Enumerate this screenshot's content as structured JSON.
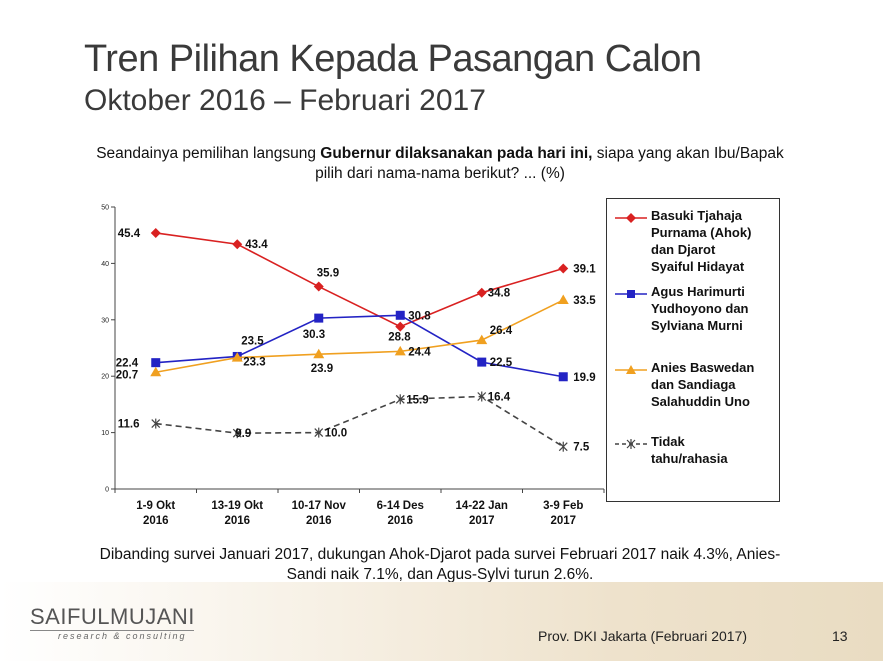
{
  "slide": {
    "title": "Tren Pilihan Kepada Pasangan Calon",
    "subtitle": "Oktober 2016 – Februari 2017",
    "question_line1_pre": "Seandainya pemilihan langsung ",
    "question_line1_bold": "Gubernur dilaksanakan pada hari ini,",
    "question_line1_post": " siapa yang akan Ibu/Bapak",
    "question_line2": "pilih dari nama-nama berikut? ... (%)",
    "conclusion_line1": "Dibanding survei Januari 2017, dukungan Ahok-Djarot pada survei Februari 2017 naik 4.3%, Anies-",
    "conclusion_line2": "Sandi naik 7.1%, dan Agus-Sylvi turun 2.6%.",
    "logo_text": "SAIFULMUJANI",
    "logo_subtext": "research & consulting",
    "source": "Prov. DKI Jakarta (Februari 2017)",
    "page_number": "13"
  },
  "chart_data": {
    "type": "line",
    "title": "",
    "xlabel": "",
    "ylabel": "",
    "ylim": [
      0,
      50
    ],
    "yticks": [
      0,
      10,
      20,
      30,
      40,
      50
    ],
    "grid": false,
    "legend_position": "right",
    "categories": [
      [
        "1-9 Okt",
        "2016"
      ],
      [
        "13-19 Okt",
        "2016"
      ],
      [
        "10-17 Nov",
        "2016"
      ],
      [
        "6-14 Des",
        "2016"
      ],
      [
        "14-22 Jan",
        "2017"
      ],
      [
        "3-9 Feb",
        "2017"
      ]
    ],
    "series": [
      {
        "name": "Basuki Tjahaja Purnama (Ahok) dan Djarot Syaiful Hidayat",
        "legend_lines": [
          "Basuki Tjahaja",
          "Purnama (Ahok)",
          "dan Djarot",
          "Syaiful Hidayat"
        ],
        "color": "#d92121",
        "marker": "diamond",
        "dash": "solid",
        "values": [
          45.4,
          43.4,
          35.9,
          28.8,
          34.8,
          39.1
        ]
      },
      {
        "name": "Agus Harimurti Yudhoyono dan Sylviana Murni",
        "legend_lines": [
          "Agus Harimurti",
          "Yudhoyono dan",
          "Sylviana Murni"
        ],
        "color": "#2323c4",
        "marker": "square",
        "dash": "solid",
        "values": [
          22.4,
          23.5,
          30.3,
          30.8,
          22.5,
          19.9
        ]
      },
      {
        "name": "Anies Baswedan dan Sandiaga Salahuddin Uno",
        "legend_lines": [
          "Anies Baswedan",
          "dan Sandiaga",
          "Salahuddin Uno"
        ],
        "color": "#f0a020",
        "marker": "triangle",
        "dash": "solid",
        "values": [
          20.7,
          23.3,
          23.9,
          24.4,
          26.4,
          33.5
        ]
      },
      {
        "name": "Tidak tahu/rahasia",
        "legend_lines": [
          "Tidak",
          "tahu/rahasia"
        ],
        "color": "#444444",
        "marker": "star",
        "dash": "dashed",
        "values": [
          11.6,
          9.9,
          10.0,
          15.9,
          16.4,
          7.5
        ]
      }
    ]
  }
}
